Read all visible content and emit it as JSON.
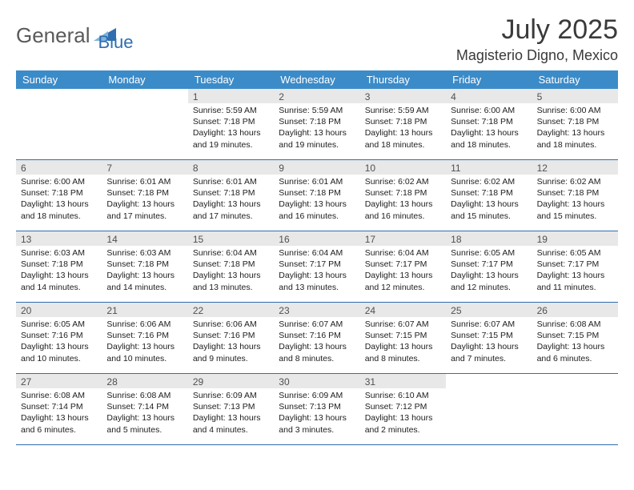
{
  "logo": {
    "part1": "General",
    "part2": "Blue"
  },
  "title": "July 2025",
  "location": "Magisterio Digno, Mexico",
  "colors": {
    "header_bg": "#3b8bc9",
    "header_text": "#ffffff",
    "daynum_bg": "#e8e8e8",
    "daynum_text": "#505050",
    "border": "#2f6eaf",
    "logo_gray": "#5a5a5a",
    "logo_blue": "#2f6eaf"
  },
  "day_names": [
    "Sunday",
    "Monday",
    "Tuesday",
    "Wednesday",
    "Thursday",
    "Friday",
    "Saturday"
  ],
  "weeks": [
    [
      {
        "n": "",
        "sr": "",
        "ss": "",
        "dl": ""
      },
      {
        "n": "",
        "sr": "",
        "ss": "",
        "dl": ""
      },
      {
        "n": "1",
        "sr": "Sunrise: 5:59 AM",
        "ss": "Sunset: 7:18 PM",
        "dl": "Daylight: 13 hours and 19 minutes."
      },
      {
        "n": "2",
        "sr": "Sunrise: 5:59 AM",
        "ss": "Sunset: 7:18 PM",
        "dl": "Daylight: 13 hours and 19 minutes."
      },
      {
        "n": "3",
        "sr": "Sunrise: 5:59 AM",
        "ss": "Sunset: 7:18 PM",
        "dl": "Daylight: 13 hours and 18 minutes."
      },
      {
        "n": "4",
        "sr": "Sunrise: 6:00 AM",
        "ss": "Sunset: 7:18 PM",
        "dl": "Daylight: 13 hours and 18 minutes."
      },
      {
        "n": "5",
        "sr": "Sunrise: 6:00 AM",
        "ss": "Sunset: 7:18 PM",
        "dl": "Daylight: 13 hours and 18 minutes."
      }
    ],
    [
      {
        "n": "6",
        "sr": "Sunrise: 6:00 AM",
        "ss": "Sunset: 7:18 PM",
        "dl": "Daylight: 13 hours and 18 minutes."
      },
      {
        "n": "7",
        "sr": "Sunrise: 6:01 AM",
        "ss": "Sunset: 7:18 PM",
        "dl": "Daylight: 13 hours and 17 minutes."
      },
      {
        "n": "8",
        "sr": "Sunrise: 6:01 AM",
        "ss": "Sunset: 7:18 PM",
        "dl": "Daylight: 13 hours and 17 minutes."
      },
      {
        "n": "9",
        "sr": "Sunrise: 6:01 AM",
        "ss": "Sunset: 7:18 PM",
        "dl": "Daylight: 13 hours and 16 minutes."
      },
      {
        "n": "10",
        "sr": "Sunrise: 6:02 AM",
        "ss": "Sunset: 7:18 PM",
        "dl": "Daylight: 13 hours and 16 minutes."
      },
      {
        "n": "11",
        "sr": "Sunrise: 6:02 AM",
        "ss": "Sunset: 7:18 PM",
        "dl": "Daylight: 13 hours and 15 minutes."
      },
      {
        "n": "12",
        "sr": "Sunrise: 6:02 AM",
        "ss": "Sunset: 7:18 PM",
        "dl": "Daylight: 13 hours and 15 minutes."
      }
    ],
    [
      {
        "n": "13",
        "sr": "Sunrise: 6:03 AM",
        "ss": "Sunset: 7:18 PM",
        "dl": "Daylight: 13 hours and 14 minutes."
      },
      {
        "n": "14",
        "sr": "Sunrise: 6:03 AM",
        "ss": "Sunset: 7:18 PM",
        "dl": "Daylight: 13 hours and 14 minutes."
      },
      {
        "n": "15",
        "sr": "Sunrise: 6:04 AM",
        "ss": "Sunset: 7:18 PM",
        "dl": "Daylight: 13 hours and 13 minutes."
      },
      {
        "n": "16",
        "sr": "Sunrise: 6:04 AM",
        "ss": "Sunset: 7:17 PM",
        "dl": "Daylight: 13 hours and 13 minutes."
      },
      {
        "n": "17",
        "sr": "Sunrise: 6:04 AM",
        "ss": "Sunset: 7:17 PM",
        "dl": "Daylight: 13 hours and 12 minutes."
      },
      {
        "n": "18",
        "sr": "Sunrise: 6:05 AM",
        "ss": "Sunset: 7:17 PM",
        "dl": "Daylight: 13 hours and 12 minutes."
      },
      {
        "n": "19",
        "sr": "Sunrise: 6:05 AM",
        "ss": "Sunset: 7:17 PM",
        "dl": "Daylight: 13 hours and 11 minutes."
      }
    ],
    [
      {
        "n": "20",
        "sr": "Sunrise: 6:05 AM",
        "ss": "Sunset: 7:16 PM",
        "dl": "Daylight: 13 hours and 10 minutes."
      },
      {
        "n": "21",
        "sr": "Sunrise: 6:06 AM",
        "ss": "Sunset: 7:16 PM",
        "dl": "Daylight: 13 hours and 10 minutes."
      },
      {
        "n": "22",
        "sr": "Sunrise: 6:06 AM",
        "ss": "Sunset: 7:16 PM",
        "dl": "Daylight: 13 hours and 9 minutes."
      },
      {
        "n": "23",
        "sr": "Sunrise: 6:07 AM",
        "ss": "Sunset: 7:16 PM",
        "dl": "Daylight: 13 hours and 8 minutes."
      },
      {
        "n": "24",
        "sr": "Sunrise: 6:07 AM",
        "ss": "Sunset: 7:15 PM",
        "dl": "Daylight: 13 hours and 8 minutes."
      },
      {
        "n": "25",
        "sr": "Sunrise: 6:07 AM",
        "ss": "Sunset: 7:15 PM",
        "dl": "Daylight: 13 hours and 7 minutes."
      },
      {
        "n": "26",
        "sr": "Sunrise: 6:08 AM",
        "ss": "Sunset: 7:15 PM",
        "dl": "Daylight: 13 hours and 6 minutes."
      }
    ],
    [
      {
        "n": "27",
        "sr": "Sunrise: 6:08 AM",
        "ss": "Sunset: 7:14 PM",
        "dl": "Daylight: 13 hours and 6 minutes."
      },
      {
        "n": "28",
        "sr": "Sunrise: 6:08 AM",
        "ss": "Sunset: 7:14 PM",
        "dl": "Daylight: 13 hours and 5 minutes."
      },
      {
        "n": "29",
        "sr": "Sunrise: 6:09 AM",
        "ss": "Sunset: 7:13 PM",
        "dl": "Daylight: 13 hours and 4 minutes."
      },
      {
        "n": "30",
        "sr": "Sunrise: 6:09 AM",
        "ss": "Sunset: 7:13 PM",
        "dl": "Daylight: 13 hours and 3 minutes."
      },
      {
        "n": "31",
        "sr": "Sunrise: 6:10 AM",
        "ss": "Sunset: 7:12 PM",
        "dl": "Daylight: 13 hours and 2 minutes."
      },
      {
        "n": "",
        "sr": "",
        "ss": "",
        "dl": ""
      },
      {
        "n": "",
        "sr": "",
        "ss": "",
        "dl": ""
      }
    ]
  ]
}
